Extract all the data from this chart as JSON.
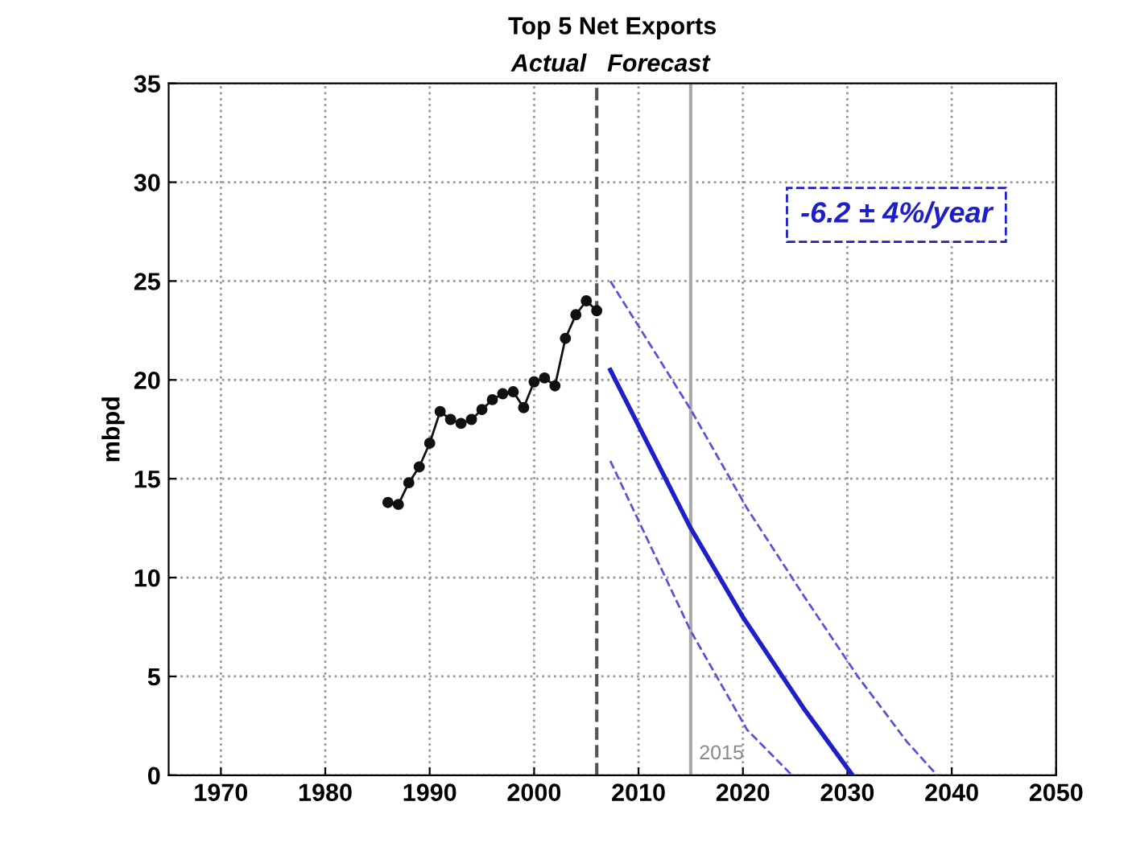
{
  "chart_data": {
    "type": "line",
    "title": "Top 5 Net Exports",
    "ylabel": "mbpd",
    "xlim": [
      1965,
      2050
    ],
    "xticks": [
      1970,
      1980,
      1990,
      2000,
      2010,
      2020,
      2030,
      2040,
      2050
    ],
    "ylim": [
      0,
      35
    ],
    "yticks": [
      0,
      5,
      10,
      15,
      20,
      25,
      30,
      35
    ],
    "grid": true,
    "series": [
      {
        "color": "#111111",
        "marker": "circle",
        "line_style": "solid",
        "x": [
          1986,
          1987,
          1988,
          1989,
          1990,
          1991,
          1992,
          1993,
          1994,
          1995,
          1996,
          1997,
          1998,
          1999,
          2000,
          2001,
          2002,
          2003,
          2004,
          2005,
          2006
        ],
        "values": [
          13.8,
          13.7,
          14.8,
          15.6,
          16.8,
          18.4,
          18.0,
          17.8,
          18.0,
          18.5,
          19.0,
          19.3,
          19.4,
          18.6,
          19.9,
          20.1,
          19.7,
          22.1,
          23.3,
          24.0,
          23.5
        ]
      },
      {
        "color": "#1f1fc8",
        "marker": "none",
        "line_style": "solid",
        "x": [
          2007.3,
          2015,
          2020,
          2025.8,
          2030.5
        ],
        "values": [
          20.5,
          12.5,
          8.0,
          3.4,
          0
        ]
      },
      {
        "color": "#5555d5",
        "marker": "none",
        "line_style": "dashed",
        "x": [
          2007.3,
          2015,
          2020.4,
          2025.8,
          2031,
          2035.7,
          2038.6
        ],
        "values": [
          25.0,
          18.5,
          13.5,
          9.1,
          5.0,
          1.7,
          0
        ]
      },
      {
        "color": "#5555d5",
        "marker": "none",
        "line_style": "dashed",
        "x": [
          2007.3,
          2015,
          2020.4,
          2024.7
        ],
        "values": [
          15.9,
          7.3,
          2.3,
          0
        ]
      }
    ],
    "ref_lines": [
      {
        "axis": "x",
        "value": 2006,
        "color": "#555555",
        "line_style": "dashed"
      },
      {
        "axis": "x",
        "value": 2015,
        "label": "2015",
        "color": "#aaaaaa",
        "line_style": "solid"
      }
    ],
    "annotations": [
      "Actual",
      "Forecast",
      "-6.2 ± 4%/year"
    ]
  }
}
